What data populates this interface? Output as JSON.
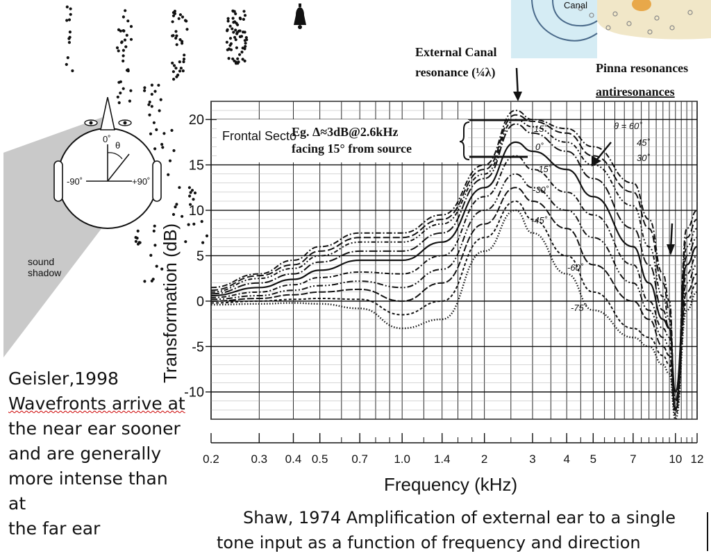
{
  "figure": {
    "annotations": {
      "canal_peak": [
        "External Canal",
        "resonance (¼λ)"
      ],
      "pinna": [
        "Pinna resonances",
        "antiresonances"
      ],
      "frontal_sector": "Frontal Secto",
      "example": [
        "Eg. Δ≈3dB@2.6kHz",
        "facing 15° from source"
      ],
      "anatomy_label": "Canal"
    },
    "head_diagram": {
      "labels": {
        "front": "0˚",
        "theta": "θ",
        "left": "-90˚",
        "right": "+90˚",
        "shadow": [
          "sound",
          "shadow"
        ]
      }
    },
    "left_text": {
      "lines": [
        "Geisler,1998",
        "Wavefronts arrive at",
        "the near ear sooner",
        "and are generally",
        "more intense than at",
        "the far ear"
      ]
    },
    "caption": {
      "lines": [
        "Shaw, 1974  Amplification of external ear to a single",
        "tone input as a function of frequency and direction"
      ]
    },
    "colors": {
      "ink": "#111111",
      "shadow": "#c9c9c9",
      "anatomy_bg": "#d5ecf4",
      "anatomy_tissue": "#f1e7c8",
      "anatomy_accent": "#e8a84a"
    }
  },
  "chart_data": {
    "type": "line",
    "xlabel": "Frequency (kHz)",
    "ylabel": "Transformation (dB)",
    "x_scale": "log",
    "xlim": [
      0.2,
      12
    ],
    "ylim": [
      -13,
      22
    ],
    "xticks": [
      0.2,
      0.3,
      0.4,
      0.5,
      0.7,
      1.0,
      1.4,
      2,
      3,
      4,
      5,
      7,
      10,
      12
    ],
    "xtick_labels": [
      "0.2",
      "0.3",
      "0.4",
      "0.5",
      "0.7",
      "1.0",
      "1.4",
      "2",
      "3",
      "4",
      "5",
      "7",
      "10",
      "12"
    ],
    "yticks": [
      20,
      15,
      10,
      5,
      0,
      -5,
      -10
    ],
    "ytick_labels": [
      "20",
      "15",
      "10",
      "5",
      "0",
      "-5",
      "-10"
    ],
    "grid": true,
    "legend": "inline labels",
    "x": [
      0.2,
      0.3,
      0.4,
      0.5,
      0.7,
      1.0,
      1.4,
      2,
      2.6,
      3,
      4,
      5,
      7,
      8,
      9,
      9.5,
      10,
      11,
      12
    ],
    "series": [
      {
        "name": "θ = 60˚",
        "values": [
          1.5,
          3,
          4.5,
          6,
          7.5,
          7.5,
          9.5,
          15,
          21,
          20,
          19,
          17,
          13,
          9,
          3,
          0,
          -12,
          8,
          10
        ]
      },
      {
        "name": "45˚",
        "values": [
          1.2,
          2.8,
          4,
          5.5,
          7,
          7,
          9,
          14.5,
          20.5,
          19.8,
          18.5,
          16,
          12,
          8,
          2,
          -1,
          -12,
          7,
          9
        ]
      },
      {
        "name": "30˚",
        "values": [
          1,
          2.5,
          3.6,
          5,
          6.5,
          6.5,
          8.5,
          14,
          20,
          19.2,
          17.5,
          15,
          10.5,
          6,
          0.5,
          -2,
          -12,
          6,
          8
        ]
      },
      {
        "name": "15˚",
        "values": [
          0.8,
          2,
          3,
          4.3,
          5.5,
          5.5,
          7.5,
          13.5,
          19.5,
          18.5,
          16.5,
          13.5,
          8,
          4,
          -1,
          -3,
          -11,
          5,
          7
        ]
      },
      {
        "name": "0˚",
        "values": [
          0.6,
          1.5,
          2.4,
          3.4,
          4.5,
          4.5,
          6.5,
          12.5,
          17.5,
          16.5,
          14.5,
          11.5,
          6,
          2,
          -2,
          -3,
          -10,
          4,
          6
        ]
      },
      {
        "name": "-15˚",
        "values": [
          0.4,
          1,
          1.8,
          2.6,
          3.2,
          3,
          5,
          11.5,
          16,
          14.5,
          12,
          9.5,
          4,
          0,
          -3,
          -4,
          -10,
          3,
          5
        ]
      },
      {
        "name": "-30˚",
        "values": [
          0.2,
          0.6,
          1.2,
          1.7,
          2.2,
          1.5,
          3.5,
          10,
          14,
          12.5,
          10,
          7,
          2,
          -1,
          -4,
          -5,
          -11,
          2,
          4
        ]
      },
      {
        "name": "-45˚",
        "values": [
          0,
          0.3,
          0.7,
          1,
          1.3,
          0,
          2,
          8.5,
          12.5,
          11,
          8,
          4,
          0,
          -2,
          -5,
          -6,
          -12,
          1,
          3
        ]
      },
      {
        "name": "-60˚",
        "values": [
          -0.2,
          0,
          0.2,
          0.3,
          0.2,
          -1.5,
          0,
          7,
          11,
          9,
          5,
          1,
          -3,
          -4,
          -6,
          -7,
          -12.5,
          0,
          2
        ]
      },
      {
        "name": "-75˚",
        "values": [
          -0.4,
          -0.3,
          -0.2,
          -0.3,
          -0.8,
          -3,
          -2,
          5.5,
          10,
          7.5,
          3,
          -1,
          -4,
          -5,
          -7,
          -8,
          -13,
          -1,
          1
        ]
      }
    ]
  }
}
